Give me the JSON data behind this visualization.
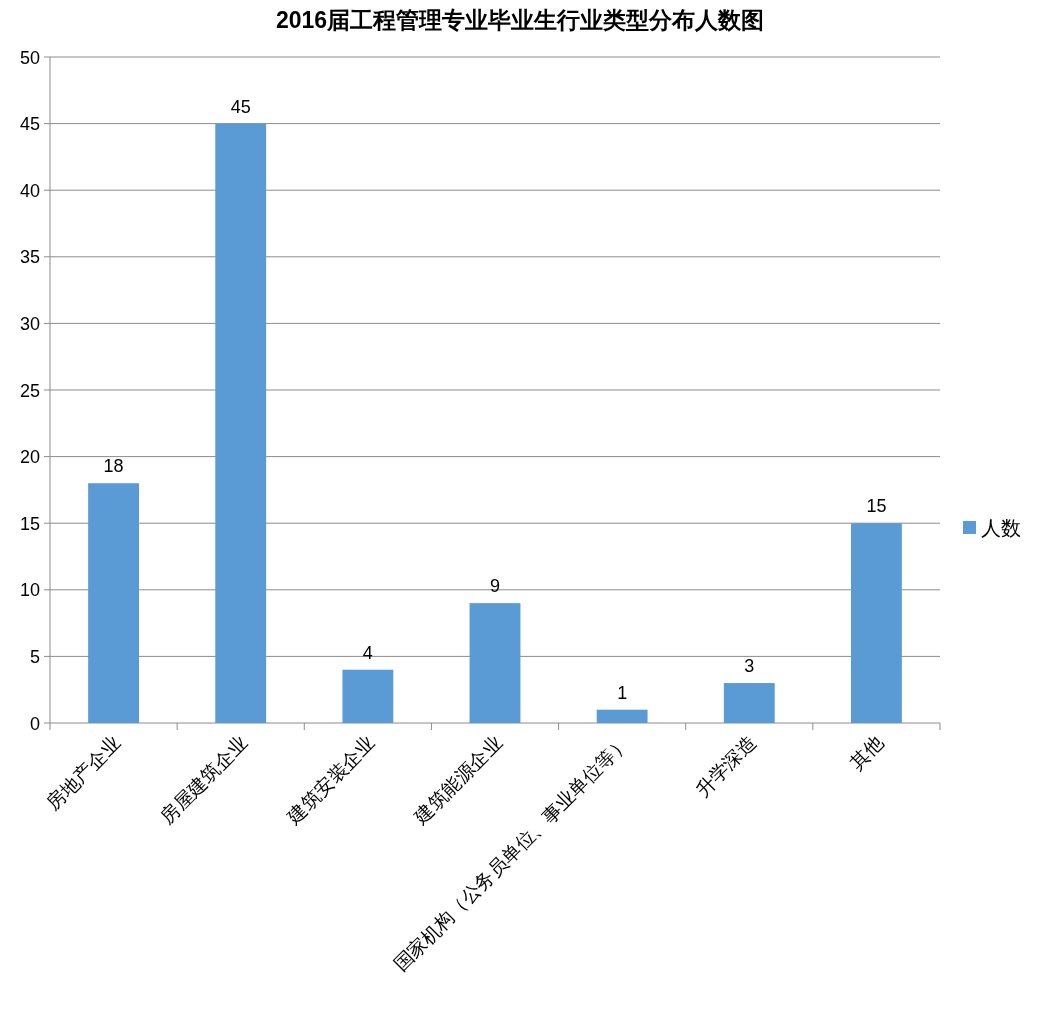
{
  "chart_data": {
    "type": "bar",
    "title": "2016届工程管理专业毕业生行业类型分布人数图",
    "categories": [
      "房地产企业",
      "房屋建筑企业",
      "建筑安装企业",
      "建筑能源企业",
      "国家机构（公务员单位、事业单位等）",
      "升学深造",
      "其他"
    ],
    "series": [
      {
        "name": "人数",
        "color": "#5b9bd5",
        "values": [
          18,
          45,
          4,
          9,
          1,
          3,
          15
        ]
      }
    ],
    "ylim": [
      0,
      50
    ],
    "yticks": [
      0,
      5,
      10,
      15,
      20,
      25,
      30,
      35,
      40,
      45,
      50
    ],
    "grid": "y",
    "legend": "right",
    "data_labels": true
  }
}
